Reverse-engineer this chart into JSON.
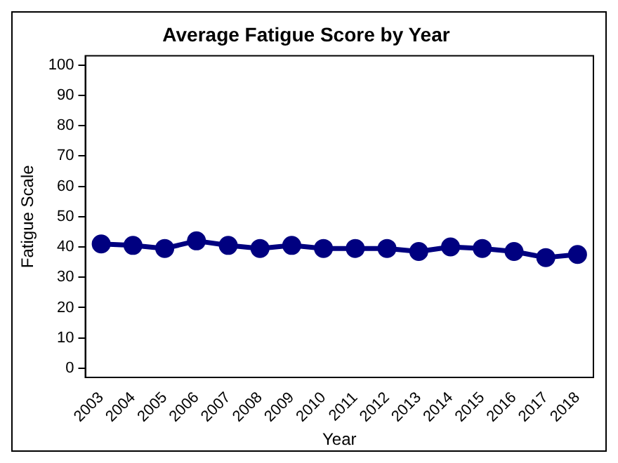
{
  "chart_data": {
    "type": "line",
    "title": "Average Fatigue Score by Year",
    "xlabel": "Year",
    "ylabel": "Fatigue Scale",
    "categories": [
      "2003",
      "2004",
      "2005",
      "2006",
      "2007",
      "2008",
      "2009",
      "2010",
      "2011",
      "2012",
      "2013",
      "2014",
      "2015",
      "2016",
      "2017",
      "2018"
    ],
    "series": [
      {
        "color": "#000080",
        "values": [
          41,
          40.5,
          39.5,
          42,
          40.5,
          39.5,
          40.5,
          39.5,
          39.5,
          39.5,
          38.5,
          40,
          39.5,
          38.5,
          36.5,
          37.5
        ]
      }
    ],
    "ylim": [
      -3,
      103
    ],
    "yticks": [
      0,
      10,
      20,
      30,
      40,
      50,
      60,
      70,
      80,
      90,
      100
    ],
    "grid": false,
    "legend": false,
    "marker": "circle",
    "line_style": "solid"
  }
}
